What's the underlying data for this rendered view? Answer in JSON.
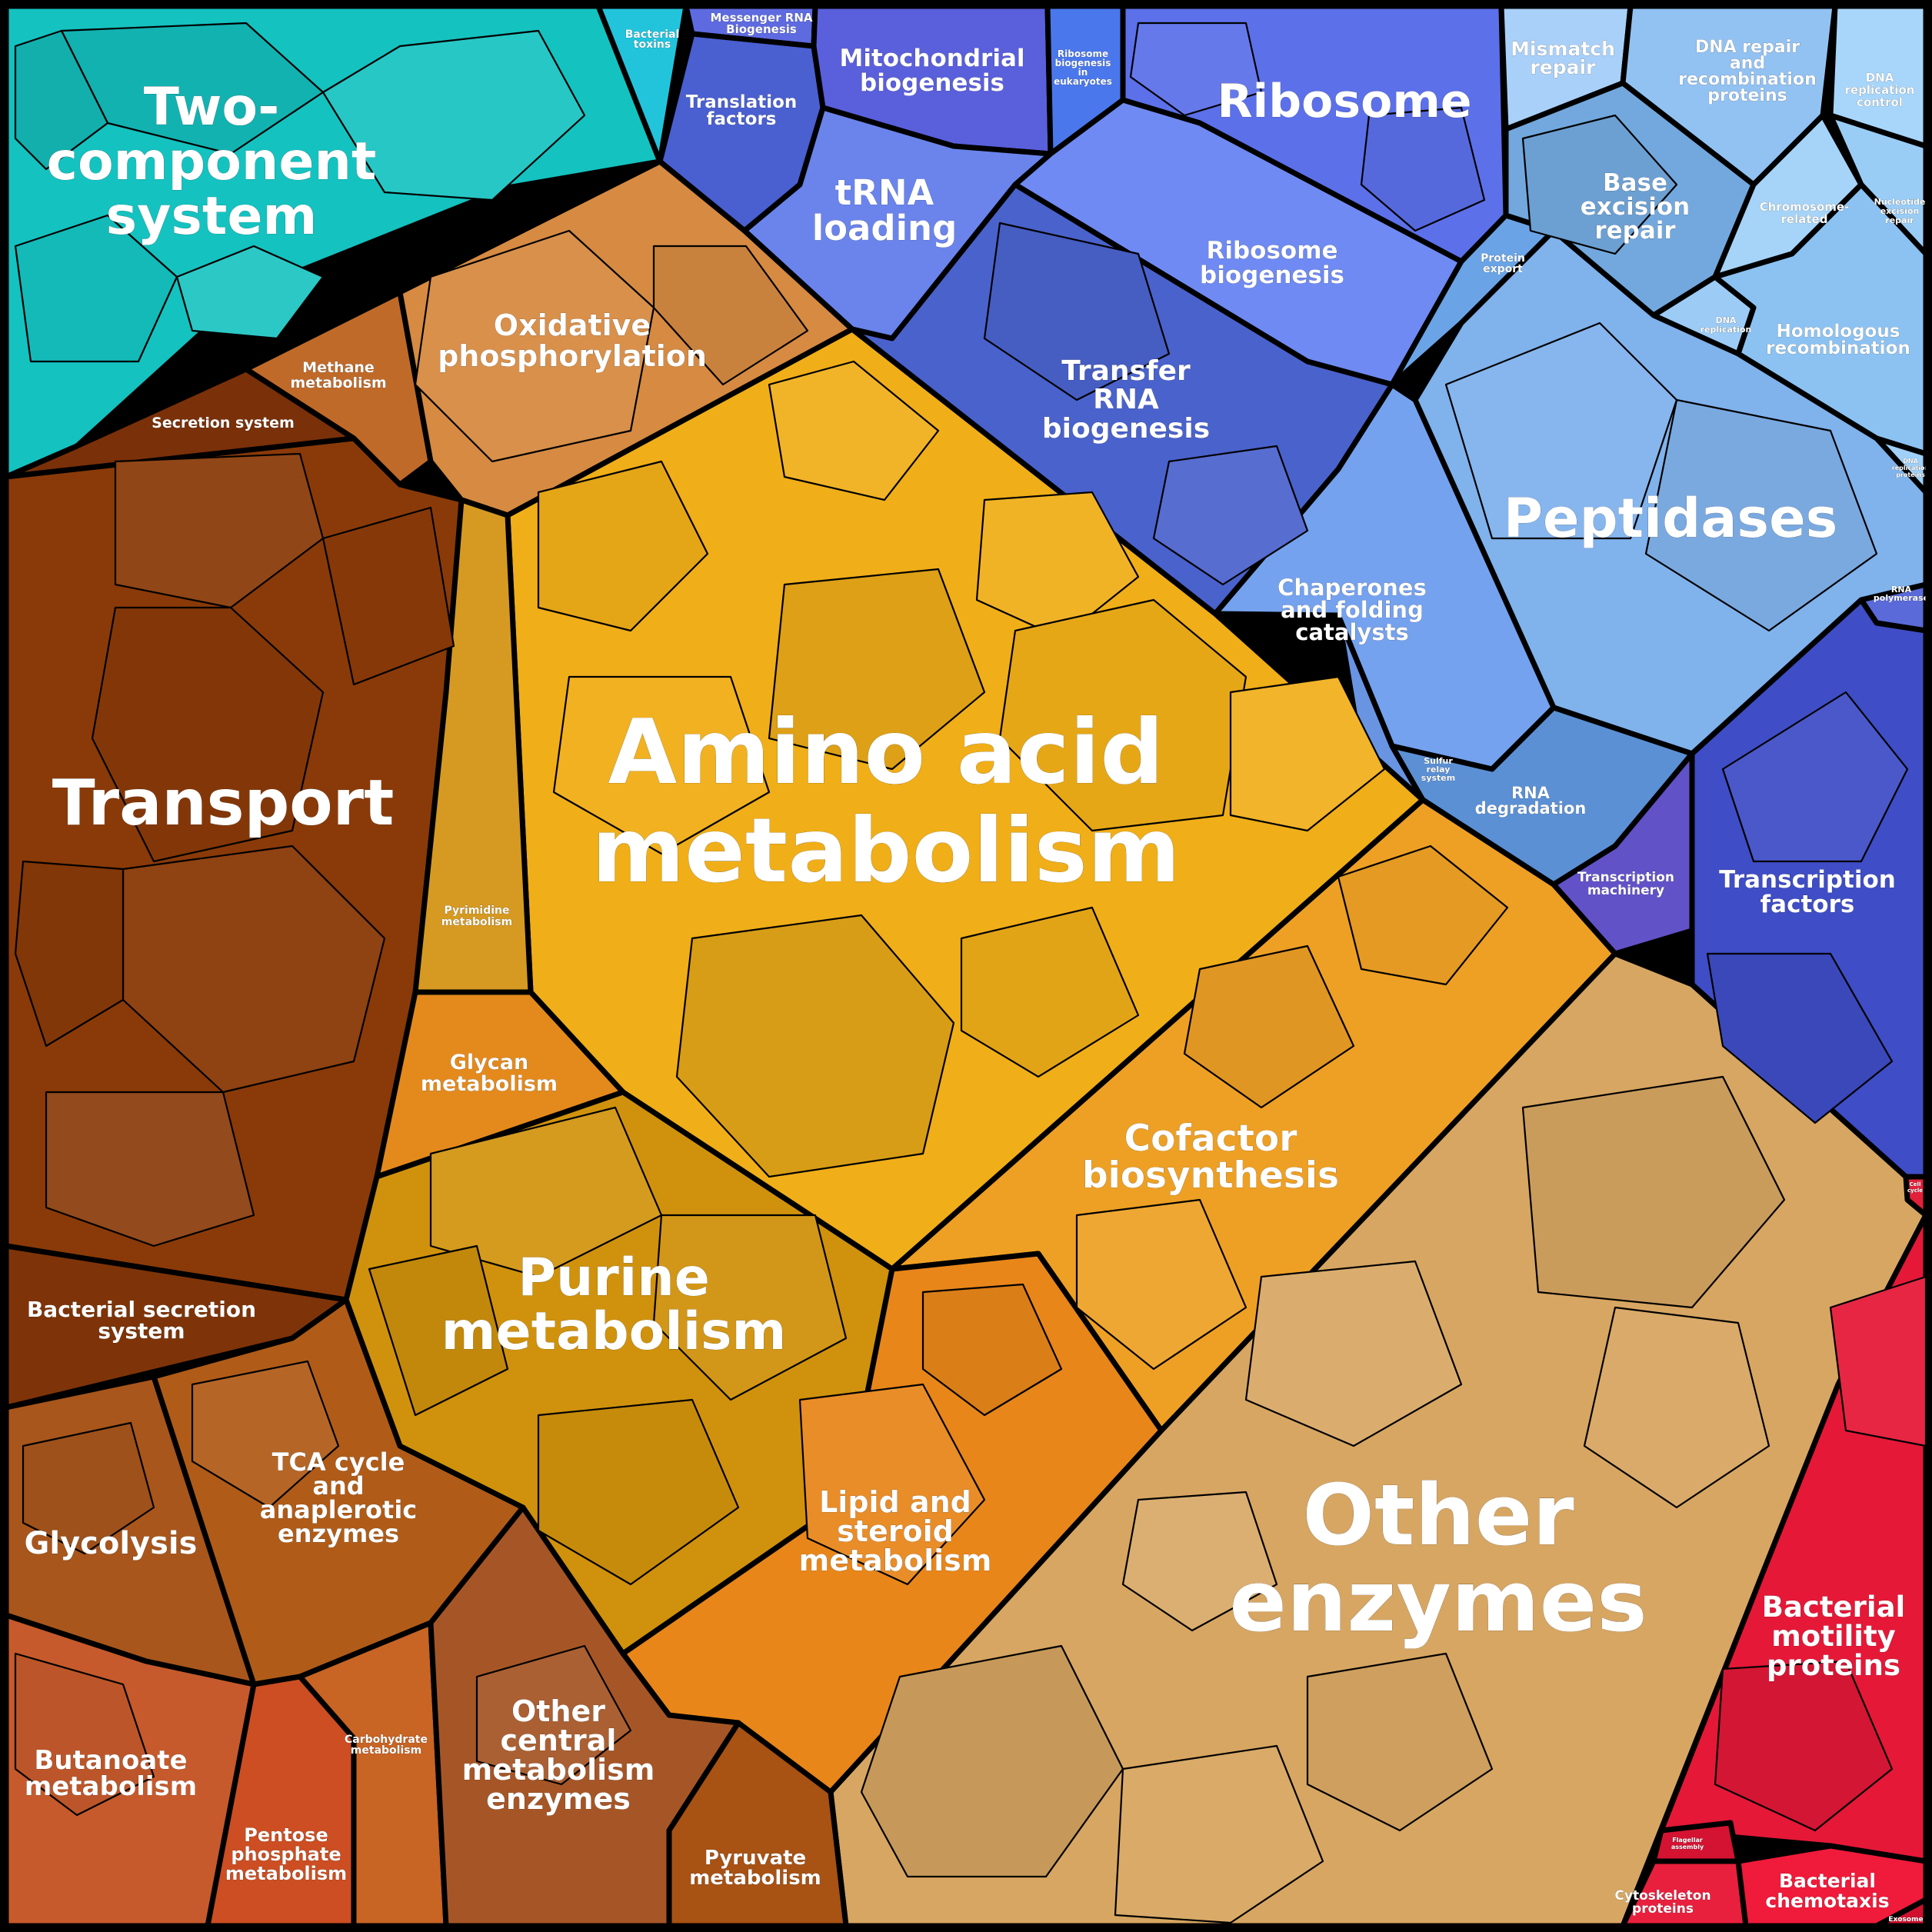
{
  "colors": {
    "teal": "#14c2c0",
    "cyan": "#22c4dc",
    "brown": "#8a3a08",
    "orange_brown": "#c8702a",
    "light_orange": "#e7963e",
    "gold": "#f0ae18",
    "dark_gold": "#c98d06",
    "orange": "#eb8f1f",
    "deep_orange": "#e07a12",
    "tan": "#d7a662",
    "rust": "#b8521c",
    "indigo": "#5865dc",
    "periwinkle": "#6f84f0",
    "blue": "#4a63cf",
    "light_blue": "#8fb8f2",
    "sky": "#9dc8f2",
    "royal_blue": "#3f4dc6",
    "red": "#e51838",
    "violet": "#6252c8"
  },
  "categories": [
    {
      "id": "two-component-system",
      "label": "Two-component system",
      "color": "#14c2c0"
    },
    {
      "id": "bacterial-toxins",
      "label": "Bacterial toxins",
      "color": "#22c4dc"
    },
    {
      "id": "messenger-rna-biogenesis",
      "label": "Messenger RNA Biogenesis",
      "color": "#5e6ae0"
    },
    {
      "id": "mitochondrial-biogenesis",
      "label": "Mitochondrial biogenesis",
      "color": "#5a5fdc"
    },
    {
      "id": "ribosome-biogenesis-eukaryotes",
      "label": "Ribosome biogenesis in eukaryotes",
      "color": "#4a78ec"
    },
    {
      "id": "ribosome",
      "label": "Ribosome",
      "color": "#5c70ea"
    },
    {
      "id": "translation-factors",
      "label": "Translation factors",
      "color": "#4a5fd0"
    },
    {
      "id": "trna-loading",
      "label": "tRNA loading",
      "color": "#6a84ec"
    },
    {
      "id": "ribosome-biogenesis",
      "label": "Ribosome biogenesis",
      "color": "#6f8af2"
    },
    {
      "id": "transfer-rna-biogenesis",
      "label": "Transfer RNA biogenesis",
      "color": "#4a62cc"
    },
    {
      "id": "mismatch-repair",
      "label": "Mismatch repair",
      "color": "#a9d0f8"
    },
    {
      "id": "dna-repair",
      "label": "DNA repair and recombination proteins",
      "color": "#92c2f2"
    },
    {
      "id": "dna-replication-control",
      "label": "DNA replication control",
      "color": "#a8d6fa"
    },
    {
      "id": "base-excision-repair",
      "label": "Base excision repair",
      "color": "#72a8de"
    },
    {
      "id": "chromosome-related",
      "label": "Chromosome-related",
      "color": "#a6d4f8"
    },
    {
      "id": "nucleotide-excision-repair",
      "label": "Nucleotide excision repair",
      "color": "#9acdf6"
    },
    {
      "id": "protein-export",
      "label": "Protein export",
      "color": "#6aa4e6"
    },
    {
      "id": "dna-replication",
      "label": "DNA replication",
      "color": "#9ccbf6"
    },
    {
      "id": "homologous-recombination",
      "label": "Homologous recombination",
      "color": "#8cc2f2"
    },
    {
      "id": "dna-replication-proteins",
      "label": "DNA replication proteins",
      "color": "#a0d0f8"
    },
    {
      "id": "peptidases",
      "label": "Peptidases",
      "color": "#80b2ec"
    },
    {
      "id": "chaperones",
      "label": "Chaperones and folding catalysts",
      "color": "#74a2ee"
    },
    {
      "id": "rna-polymerase",
      "label": "RNA polymerase",
      "color": "#5a6ad8"
    },
    {
      "id": "sulfur-relay-system",
      "label": "Sulfur relay system",
      "color": "#6894e2"
    },
    {
      "id": "rna-degradation",
      "label": "RNA degradation",
      "color": "#5b90d4"
    },
    {
      "id": "transcription-machinery",
      "label": "Transcription machinery",
      "color": "#6252c8"
    },
    {
      "id": "transcription-factors",
      "label": "Transcription factors",
      "color": "#3f4dc6"
    },
    {
      "id": "methane-metabolism",
      "label": "Methane metabolism",
      "color": "#c06a2a"
    },
    {
      "id": "oxidative-phosphorylation",
      "label": "Oxidative phosphorylation",
      "color": "#d68a42"
    },
    {
      "id": "secretion-system",
      "label": "Secretion system",
      "color": "#7a3008"
    },
    {
      "id": "transport",
      "label": "Transport",
      "color": "#8a3a08"
    },
    {
      "id": "amino-acid-metabolism",
      "label": "Amino acid metabolism",
      "color": "#f0ae18"
    },
    {
      "id": "pyrimidine-metabolism",
      "label": "Pyrimidine metabolism",
      "color": "#d69a22"
    },
    {
      "id": "glycan-metabolism",
      "label": "Glycan metabolism",
      "color": "#e48a1c"
    },
    {
      "id": "cofactor-biosynthesis",
      "label": "Cofactor biosynthesis",
      "color": "#eea024"
    },
    {
      "id": "purine-metabolism",
      "label": "Purine metabolism",
      "color": "#d0920c"
    },
    {
      "id": "lipid-steroid-metabolism",
      "label": "Lipid and steroid metabolism",
      "color": "#e8861a"
    },
    {
      "id": "other-enzymes",
      "label": "Other enzymes",
      "color": "#d7a662"
    },
    {
      "id": "bacterial-secretion-system",
      "label": "Bacterial secretion system",
      "color": "#7e3408"
    },
    {
      "id": "glycolysis",
      "label": "Glycolysis",
      "color": "#a8561c"
    },
    {
      "id": "tca-cycle",
      "label": "TCA cycle and anaplerotic enzymes",
      "color": "#b05c18"
    },
    {
      "id": "butanoate-metabolism",
      "label": "Butanoate metabolism",
      "color": "#c65a2c"
    },
    {
      "id": "pentose-phosphate",
      "label": "Pentose phosphate metabolism",
      "color": "#cc4e22"
    },
    {
      "id": "carbohydrate-metabolism",
      "label": "Carbohydrate metabolism",
      "color": "#c86424"
    },
    {
      "id": "other-central-metabolism",
      "label": "Other central metabolism enzymes",
      "color": "#a65626"
    },
    {
      "id": "pyruvate-metabolism",
      "label": "Pyruvate metabolism",
      "color": "#a85214"
    },
    {
      "id": "bacterial-motility",
      "label": "Bacterial motility proteins",
      "color": "#e51838"
    },
    {
      "id": "flagellar-assembly",
      "label": "Flagellar assembly",
      "color": "#d41232"
    },
    {
      "id": "cytoskeleton-proteins",
      "label": "Cytoskeleton proteins",
      "color": "#e8203e"
    },
    {
      "id": "bacterial-chemotaxis",
      "label": "Bacterial chemotaxis",
      "color": "#f01a3a"
    },
    {
      "id": "exosome",
      "label": "Exosome",
      "color": "#d0102e"
    },
    {
      "id": "cell-cycle",
      "label": "Cell cycle",
      "color": "#e2203a"
    }
  ],
  "labels": {
    "two_component_1": "Two-",
    "two_component_2": "component",
    "two_component_3": "system",
    "bacterial_toxins_1": "Bacterial",
    "bacterial_toxins_2": "toxins",
    "mrna_1": "Messenger RNA",
    "mrna_2": "Biogenesis",
    "mito_1": "Mitochondrial",
    "mito_2": "biogenesis",
    "ribo_euk_1": "Ribosome",
    "ribo_euk_2": "biogenesis",
    "ribo_euk_3": "in",
    "ribo_euk_4": "eukaryotes",
    "ribosome": "Ribosome",
    "translation_1": "Translation",
    "translation_2": "factors",
    "trna_1": "tRNA",
    "trna_2": "loading",
    "ribo_bio_1": "Ribosome",
    "ribo_bio_2": "biogenesis",
    "transfer_rna_1": "Transfer",
    "transfer_rna_2": "RNA",
    "transfer_rna_3": "biogenesis",
    "mismatch_1": "Mismatch",
    "mismatch_2": "repair",
    "dna_repair_1": "DNA repair",
    "dna_repair_2": "and",
    "dna_repair_3": "recombination",
    "dna_repair_4": "proteins",
    "dna_rep_ctrl_1": "DNA",
    "dna_rep_ctrl_2": "replication",
    "dna_rep_ctrl_3": "control",
    "base_exc_1": "Base",
    "base_exc_2": "excision",
    "base_exc_3": "repair",
    "chromosome_1": "Chromosome-",
    "chromosome_2": "related",
    "nucl_exc_1": "Nucleotide",
    "nucl_exc_2": "excision",
    "nucl_exc_3": "repair",
    "protein_export_1": "Protein",
    "protein_export_2": "export",
    "dna_replication_1": "DNA",
    "dna_replication_2": "replication",
    "homologous_1": "Homologous",
    "homologous_2": "recombination",
    "dna_rep_prot_1": "DNA",
    "dna_rep_prot_2": "replication",
    "dna_rep_prot_3": "proteins",
    "peptidases": "Peptidases",
    "chaperones_1": "Chaperones",
    "chaperones_2": "and folding",
    "chaperones_3": "catalysts",
    "rna_pol_1": "RNA",
    "rna_pol_2": "polymerase",
    "sulfur_1": "Sulfur",
    "sulfur_2": "relay",
    "sulfur_3": "system",
    "rna_deg_1": "RNA",
    "rna_deg_2": "degradation",
    "trans_mach_1": "Transcription",
    "trans_mach_2": "machinery",
    "trans_fact_1": "Transcription",
    "trans_fact_2": "factors",
    "methane_1": "Methane",
    "methane_2": "metabolism",
    "oxphos_1": "Oxidative",
    "oxphos_2": "phosphorylation",
    "secretion": "Secretion system",
    "transport": "Transport",
    "amino_1": "Amino acid",
    "amino_2": "metabolism",
    "pyrimidine_1": "Pyrimidine",
    "pyrimidine_2": "metabolism",
    "glycan_1": "Glycan",
    "glycan_2": "metabolism",
    "cofactor_1": "Cofactor",
    "cofactor_2": "biosynthesis",
    "purine_1": "Purine",
    "purine_2": "metabolism",
    "lipid_1": "Lipid and",
    "lipid_2": "steroid",
    "lipid_3": "metabolism",
    "other_enz_1": "Other",
    "other_enz_2": "enzymes",
    "bact_sec_1": "Bacterial secretion",
    "bact_sec_2": "system",
    "glycolysis": "Glycolysis",
    "tca_1": "TCA cycle",
    "tca_2": "and",
    "tca_3": "anaplerotic",
    "tca_4": "enzymes",
    "butanoate_1": "Butanoate",
    "butanoate_2": "metabolism",
    "pentose_1": "Pentose",
    "pentose_2": "phosphate",
    "pentose_3": "metabolism",
    "carbo_1": "Carbohydrate",
    "carbo_2": "metabolism",
    "other_central_1": "Other",
    "other_central_2": "central",
    "other_central_3": "metabolism",
    "other_central_4": "enzymes",
    "pyruvate_1": "Pyruvate",
    "pyruvate_2": "metabolism",
    "motility_1": "Bacterial",
    "motility_2": "motility",
    "motility_3": "proteins",
    "flagellar_1": "Flagellar",
    "flagellar_2": "assembly",
    "cytoskeleton_1": "Cytoskeleton",
    "cytoskeleton_2": "proteins",
    "chemotaxis_1": "Bacterial",
    "chemotaxis_2": "chemotaxis",
    "exosome": "Exosome",
    "cell_cycle_1": "Cell",
    "cell_cycle_2": "cycle"
  }
}
